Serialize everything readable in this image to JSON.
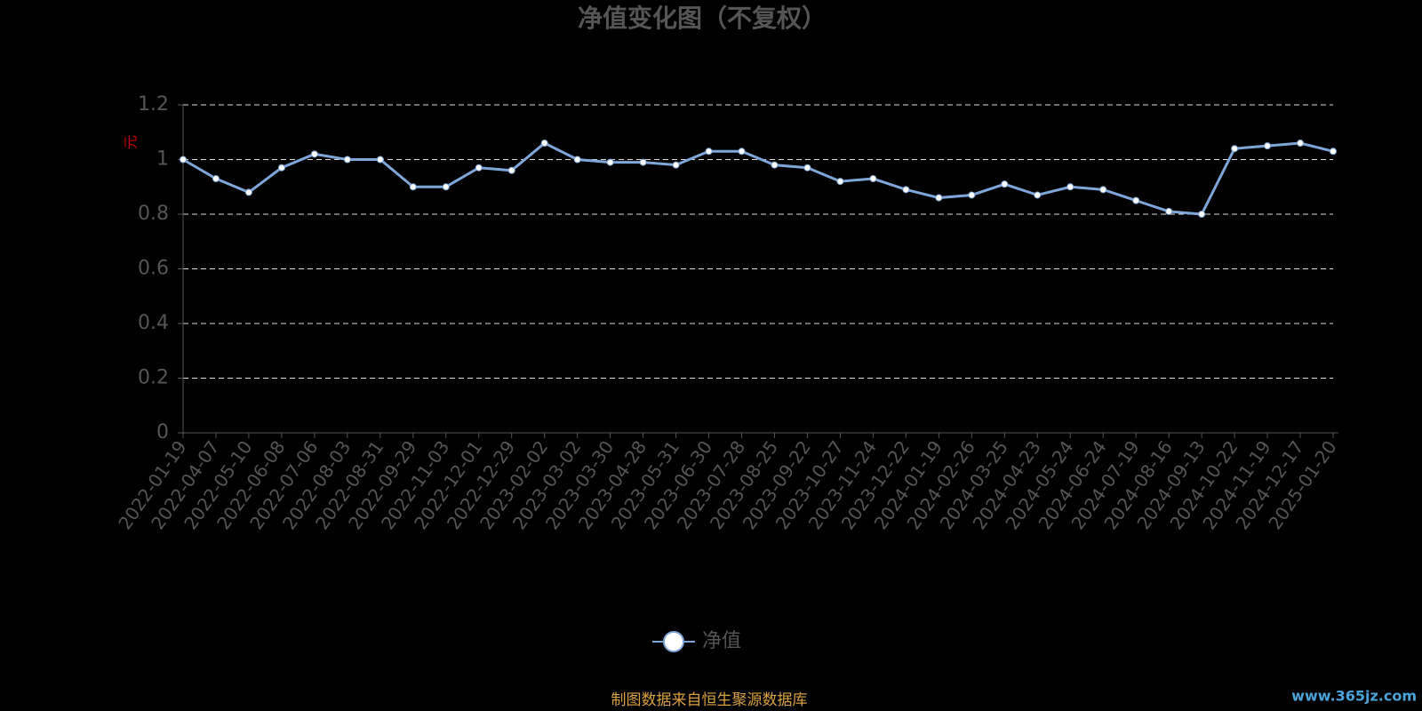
{
  "chart_data": {
    "type": "line",
    "title": "净值变化图（不复权）",
    "y_label": "元",
    "categories": [
      "2022-01-19",
      "2022-04-07",
      "2022-05-10",
      "2022-06-08",
      "2022-07-06",
      "2022-08-03",
      "2022-08-31",
      "2022-09-29",
      "2022-11-03",
      "2022-12-01",
      "2022-12-29",
      "2023-02-02",
      "2023-03-02",
      "2023-03-30",
      "2023-04-28",
      "2023-05-31",
      "2023-06-30",
      "2023-07-28",
      "2023-08-25",
      "2023-09-22",
      "2023-10-27",
      "2023-11-24",
      "2023-12-22",
      "2024-01-19",
      "2024-02-26",
      "2024-03-25",
      "2024-04-23",
      "2024-05-24",
      "2024-06-24",
      "2024-07-19",
      "2024-08-16",
      "2024-09-13",
      "2024-10-22",
      "2024-11-19",
      "2024-12-17",
      "2025-01-20"
    ],
    "series": [
      {
        "name": "净值",
        "color": "#7fa6d9",
        "values": [
          1.0,
          0.93,
          0.88,
          0.97,
          1.02,
          1.0,
          1.0,
          0.9,
          0.9,
          0.97,
          0.96,
          1.06,
          1.0,
          0.99,
          0.99,
          0.98,
          1.03,
          1.03,
          0.98,
          0.97,
          0.92,
          0.93,
          0.89,
          0.86,
          0.87,
          0.91,
          0.87,
          0.9,
          0.89,
          0.85,
          0.81,
          0.8,
          1.04,
          1.05,
          1.06,
          1.03
        ]
      }
    ],
    "ylim": [
      0,
      1.2
    ],
    "yticks": [
      0,
      0.2,
      0.4,
      0.6,
      0.8,
      1,
      1.2
    ],
    "grid": true,
    "legend": "bottom",
    "source": "制图数据来自恒生聚源数据库",
    "watermark": "www.365jz.com"
  }
}
